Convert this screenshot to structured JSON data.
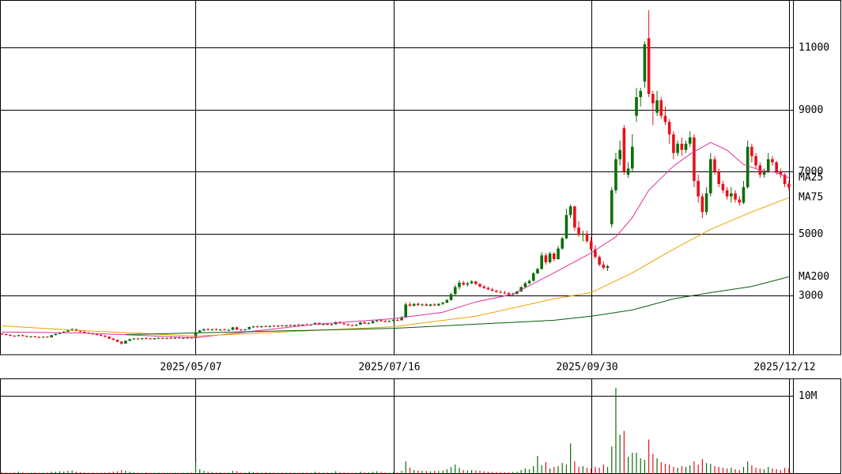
{
  "chart_data": {
    "type": "candlestick",
    "up_color": "#0a6e0a",
    "down_color": "#e8101a",
    "xlim": [
      -0.5,
      192
    ],
    "xticks": [
      {
        "value": 47,
        "label": "2025/05/07"
      },
      {
        "value": 95,
        "label": "2025/07/16"
      },
      {
        "value": 143,
        "label": "2025/09/30"
      },
      {
        "value": 191,
        "label": "2025/12/12"
      }
    ],
    "ylim": [
      1100,
      12530
    ],
    "yticks": [
      3000,
      5000,
      7000,
      9000,
      11000
    ],
    "grid": true,
    "ohlc": [
      [
        1780,
        1800,
        1740,
        1760
      ],
      [
        1760,
        1780,
        1720,
        1740
      ],
      [
        1740,
        1760,
        1700,
        1710
      ],
      [
        1710,
        1730,
        1680,
        1700
      ],
      [
        1700,
        1740,
        1690,
        1730
      ],
      [
        1730,
        1750,
        1690,
        1700
      ],
      [
        1700,
        1720,
        1660,
        1680
      ],
      [
        1680,
        1700,
        1650,
        1690
      ],
      [
        1690,
        1710,
        1660,
        1670
      ],
      [
        1670,
        1690,
        1640,
        1660
      ],
      [
        1660,
        1690,
        1650,
        1680
      ],
      [
        1680,
        1700,
        1650,
        1660
      ],
      [
        1660,
        1740,
        1650,
        1730
      ],
      [
        1730,
        1780,
        1720,
        1770
      ],
      [
        1770,
        1820,
        1760,
        1810
      ],
      [
        1810,
        1860,
        1790,
        1840
      ],
      [
        1840,
        1900,
        1830,
        1880
      ],
      [
        1880,
        1960,
        1860,
        1920
      ],
      [
        1920,
        1940,
        1850,
        1870
      ],
      [
        1870,
        1890,
        1820,
        1840
      ],
      [
        1840,
        1860,
        1790,
        1810
      ],
      [
        1810,
        1830,
        1770,
        1790
      ],
      [
        1790,
        1800,
        1740,
        1760
      ],
      [
        1760,
        1780,
        1720,
        1740
      ],
      [
        1740,
        1760,
        1690,
        1710
      ],
      [
        1710,
        1730,
        1660,
        1680
      ],
      [
        1680,
        1700,
        1600,
        1620
      ],
      [
        1620,
        1640,
        1560,
        1580
      ],
      [
        1580,
        1600,
        1500,
        1520
      ],
      [
        1520,
        1540,
        1420,
        1460
      ],
      [
        1460,
        1560,
        1450,
        1550
      ],
      [
        1550,
        1620,
        1530,
        1600
      ],
      [
        1600,
        1640,
        1580,
        1620
      ],
      [
        1620,
        1650,
        1590,
        1610
      ],
      [
        1610,
        1640,
        1580,
        1630
      ],
      [
        1630,
        1660,
        1600,
        1620
      ],
      [
        1620,
        1650,
        1590,
        1600
      ],
      [
        1600,
        1640,
        1580,
        1630
      ],
      [
        1630,
        1660,
        1610,
        1640
      ],
      [
        1640,
        1660,
        1600,
        1620
      ],
      [
        1620,
        1650,
        1600,
        1640
      ],
      [
        1640,
        1670,
        1620,
        1630
      ],
      [
        1630,
        1660,
        1600,
        1650
      ],
      [
        1650,
        1670,
        1620,
        1630
      ],
      [
        1630,
        1660,
        1610,
        1640
      ],
      [
        1640,
        1680,
        1620,
        1650
      ],
      [
        1650,
        1680,
        1620,
        1640
      ],
      [
        1640,
        1850,
        1630,
        1820
      ],
      [
        1820,
        1900,
        1800,
        1880
      ],
      [
        1880,
        1950,
        1860,
        1920
      ],
      [
        1920,
        1960,
        1880,
        1900
      ],
      [
        1900,
        1940,
        1870,
        1920
      ],
      [
        1920,
        1950,
        1880,
        1900
      ],
      [
        1900,
        1930,
        1870,
        1910
      ],
      [
        1910,
        1940,
        1880,
        1890
      ],
      [
        1890,
        1920,
        1860,
        1900
      ],
      [
        1900,
        2000,
        1890,
        1980
      ],
      [
        1980,
        2010,
        1890,
        1910
      ],
      [
        1910,
        1930,
        1870,
        1890
      ],
      [
        1890,
        1930,
        1880,
        1920
      ],
      [
        1920,
        2010,
        1910,
        1990
      ],
      [
        1990,
        2030,
        1960,
        2010
      ],
      [
        2010,
        2040,
        1970,
        1990
      ],
      [
        1990,
        2030,
        1970,
        2020
      ],
      [
        2020,
        2050,
        1990,
        2000
      ],
      [
        2000,
        2040,
        1980,
        2030
      ],
      [
        2030,
        2060,
        2000,
        2010
      ],
      [
        2010,
        2050,
        1990,
        2040
      ],
      [
        2040,
        2070,
        2010,
        2020
      ],
      [
        2020,
        2060,
        2000,
        2050
      ],
      [
        2050,
        2080,
        2020,
        2030
      ],
      [
        2030,
        2070,
        2010,
        2060
      ],
      [
        2060,
        2100,
        2030,
        2040
      ],
      [
        2040,
        2080,
        2020,
        2070
      ],
      [
        2070,
        2110,
        2040,
        2050
      ],
      [
        2050,
        2090,
        2030,
        2080
      ],
      [
        2080,
        2150,
        2060,
        2120
      ],
      [
        2120,
        2140,
        2060,
        2070
      ],
      [
        2070,
        2100,
        2040,
        2090
      ],
      [
        2090,
        2120,
        2050,
        2060
      ],
      [
        2060,
        2100,
        2040,
        2080
      ],
      [
        2080,
        2170,
        2070,
        2150
      ],
      [
        2150,
        2180,
        2100,
        2110
      ],
      [
        2110,
        2130,
        2060,
        2080
      ],
      [
        2080,
        2100,
        2030,
        2050
      ],
      [
        2050,
        2080,
        2020,
        2040
      ],
      [
        2040,
        2080,
        2020,
        2070
      ],
      [
        2070,
        2160,
        2060,
        2140
      ],
      [
        2140,
        2170,
        2090,
        2100
      ],
      [
        2100,
        2140,
        2080,
        2120
      ],
      [
        2120,
        2200,
        2100,
        2180
      ],
      [
        2180,
        2230,
        2150,
        2210
      ],
      [
        2210,
        2240,
        2160,
        2180
      ],
      [
        2180,
        2220,
        2150,
        2170
      ],
      [
        2170,
        2200,
        2140,
        2190
      ],
      [
        2190,
        2240,
        2170,
        2220
      ],
      [
        2220,
        2260,
        2190,
        2210
      ],
      [
        2210,
        2350,
        2200,
        2300
      ],
      [
        2300,
        2780,
        2290,
        2720
      ],
      [
        2720,
        2800,
        2650,
        2680
      ],
      [
        2680,
        2760,
        2650,
        2740
      ],
      [
        2740,
        2780,
        2670,
        2700
      ],
      [
        2700,
        2750,
        2660,
        2720
      ],
      [
        2720,
        2760,
        2660,
        2680
      ],
      [
        2680,
        2740,
        2650,
        2720
      ],
      [
        2720,
        2760,
        2670,
        2690
      ],
      [
        2690,
        2760,
        2660,
        2740
      ],
      [
        2740,
        2800,
        2700,
        2780
      ],
      [
        2780,
        2900,
        2760,
        2860
      ],
      [
        2860,
        3100,
        2840,
        3050
      ],
      [
        3050,
        3350,
        3020,
        3280
      ],
      [
        3280,
        3500,
        3200,
        3420
      ],
      [
        3420,
        3480,
        3320,
        3360
      ],
      [
        3360,
        3440,
        3300,
        3400
      ],
      [
        3400,
        3500,
        3380,
        3460
      ],
      [
        3460,
        3480,
        3340,
        3380
      ],
      [
        3380,
        3400,
        3260,
        3300
      ],
      [
        3300,
        3340,
        3220,
        3250
      ],
      [
        3250,
        3300,
        3180,
        3200
      ],
      [
        3200,
        3260,
        3140,
        3160
      ],
      [
        3160,
        3200,
        3100,
        3120
      ],
      [
        3120,
        3180,
        3080,
        3100
      ],
      [
        3100,
        3160,
        3050,
        3080
      ],
      [
        3080,
        3120,
        3020,
        3040
      ],
      [
        3040,
        3100,
        3000,
        3060
      ],
      [
        3060,
        3160,
        3040,
        3140
      ],
      [
        3140,
        3300,
        3120,
        3280
      ],
      [
        3280,
        3450,
        3250,
        3400
      ],
      [
        3400,
        3520,
        3380,
        3480
      ],
      [
        3480,
        3760,
        3460,
        3720
      ],
      [
        3720,
        3900,
        3700,
        3860
      ],
      [
        3860,
        4400,
        3850,
        4300
      ],
      [
        4300,
        4380,
        4000,
        4080
      ],
      [
        4080,
        4420,
        4040,
        4360
      ],
      [
        4360,
        4400,
        4100,
        4180
      ],
      [
        4180,
        4600,
        4160,
        4520
      ],
      [
        4520,
        4900,
        4480,
        4850
      ],
      [
        4850,
        5800,
        4820,
        5600
      ],
      [
        5600,
        5950,
        5500,
        5880
      ],
      [
        5880,
        5900,
        5100,
        5200
      ],
      [
        5200,
        5400,
        4900,
        4960
      ],
      [
        4960,
        5100,
        4750,
        5000
      ],
      [
        5000,
        5100,
        4700,
        4760
      ],
      [
        4760,
        4900,
        4450,
        4500
      ],
      [
        4500,
        4620,
        4200,
        4250
      ],
      [
        4250,
        4300,
        3950,
        4000
      ],
      [
        4000,
        4100,
        3850,
        3900
      ],
      [
        3900,
        4000,
        3800,
        3950
      ],
      [
        5300,
        6500,
        5200,
        6400
      ],
      [
        6400,
        7600,
        6300,
        7400
      ],
      [
        7400,
        8000,
        7200,
        7700
      ],
      [
        8400,
        8500,
        6900,
        7000
      ],
      [
        6900,
        7300,
        6800,
        7100
      ],
      [
        7100,
        8200,
        7000,
        7800
      ],
      [
        8800,
        9700,
        8600,
        9400
      ],
      [
        9400,
        9700,
        9100,
        9600
      ],
      [
        9900,
        11200,
        9700,
        11100
      ],
      [
        11300,
        12200,
        9400,
        9500
      ],
      [
        9500,
        9600,
        8500,
        9200
      ],
      [
        8900,
        9600,
        8800,
        9300
      ],
      [
        9300,
        9400,
        8700,
        8800
      ],
      [
        8800,
        9100,
        8500,
        8600
      ],
      [
        8600,
        8700,
        7900,
        8200
      ],
      [
        8200,
        8300,
        7400,
        7600
      ],
      [
        7600,
        8000,
        7500,
        7900
      ],
      [
        7900,
        8100,
        7500,
        7700
      ],
      [
        7700,
        8000,
        7600,
        7900
      ],
      [
        7900,
        8300,
        7800,
        8100
      ],
      [
        8100,
        8200,
        6500,
        6700
      ],
      [
        6700,
        6900,
        6000,
        6200
      ],
      [
        6200,
        6300,
        5500,
        5700
      ],
      [
        5700,
        6500,
        5600,
        6300
      ],
      [
        6300,
        7600,
        6200,
        7400
      ],
      [
        7400,
        7500,
        6900,
        7000
      ],
      [
        7000,
        7100,
        6500,
        6600
      ],
      [
        6600,
        6700,
        6300,
        6400
      ],
      [
        6400,
        6500,
        6100,
        6200
      ],
      [
        6200,
        6500,
        6000,
        6300
      ],
      [
        6300,
        6400,
        6000,
        6100
      ],
      [
        6100,
        6200,
        5900,
        6000
      ],
      [
        6000,
        6700,
        5950,
        6500
      ],
      [
        6500,
        8000,
        6450,
        7800
      ],
      [
        7800,
        7900,
        7300,
        7500
      ],
      [
        7500,
        7600,
        7100,
        7200
      ],
      [
        7200,
        7300,
        6800,
        6900
      ],
      [
        6900,
        7100,
        6800,
        7000
      ],
      [
        7000,
        7600,
        6950,
        7400
      ],
      [
        7400,
        7500,
        7200,
        7300
      ],
      [
        7300,
        7350,
        6900,
        7000
      ],
      [
        7000,
        7100,
        6800,
        6900
      ],
      [
        6900,
        6950,
        6500,
        6600
      ],
      [
        6600,
        6700,
        6400,
        6500
      ]
    ],
    "series": [
      {
        "name": "MA25",
        "color": "#e0309a",
        "x": [
          0,
          19,
          47,
          76,
          95,
          107,
          115,
          124,
          134,
          143,
          149,
          153,
          157,
          163,
          167,
          172,
          176,
          180,
          184,
          188,
          191
        ],
        "values": [
          1830,
          1800,
          1650,
          2080,
          2260,
          2470,
          2800,
          3050,
          3740,
          4380,
          4900,
          5520,
          6400,
          7180,
          7560,
          7940,
          7690,
          7230,
          7050,
          6970,
          6800
        ]
      },
      {
        "name": "MA75",
        "color": "#f0a000",
        "x": [
          0,
          19,
          47,
          95,
          115,
          134,
          143,
          153,
          163,
          172,
          182,
          191
        ],
        "values": [
          2030,
          1880,
          1700,
          2000,
          2340,
          2900,
          3100,
          3740,
          4500,
          5140,
          5700,
          6160
        ]
      },
      {
        "name": "MA200",
        "color": "#0a5a0a",
        "x": [
          30,
          95,
          134,
          143,
          153,
          163,
          172,
          182,
          191
        ],
        "values": [
          1750,
          1950,
          2210,
          2340,
          2540,
          2900,
          3100,
          3300,
          3610
        ]
      }
    ],
    "volume": [
      250000,
      200000,
      180000,
      220000,
      300000,
      200000,
      150000,
      180000,
      200000,
      160000,
      180000,
      200000,
      300000,
      280000,
      350000,
      320000,
      400000,
      450000,
      300000,
      250000,
      200000,
      180000,
      200000,
      150000,
      180000,
      200000,
      250000,
      300000,
      350000,
      500000,
      400000,
      300000,
      200000,
      180000,
      150000,
      200000,
      170000,
      160000,
      180000,
      150000,
      160000,
      150000,
      170000,
      140000,
      160000,
      180000,
      200000,
      1500000,
      600000,
      400000,
      300000,
      250000,
      200000,
      220000,
      180000,
      200000,
      400000,
      350000,
      200000,
      180000,
      300000,
      250000,
      200000,
      180000,
      220000,
      200000,
      180000,
      160000,
      200000,
      180000,
      170000,
      190000,
      160000,
      200000,
      180000,
      170000,
      300000,
      220000,
      180000,
      200000,
      170000,
      350000,
      250000,
      200000,
      180000,
      160000,
      170000,
      300000,
      220000,
      200000,
      300000,
      350000,
      250000,
      200000,
      180000,
      220000,
      200000,
      400000,
      1600000,
      800000,
      500000,
      450000,
      400000,
      380000,
      350000,
      400000,
      380000,
      450000,
      600000,
      900000,
      1200000,
      800000,
      500000,
      450000,
      500000,
      450000,
      400000,
      350000,
      300000,
      280000,
      260000,
      250000,
      240000,
      220000,
      250000,
      300000,
      500000,
      700000,
      600000,
      1000000,
      2300000,
      1100000,
      1500000,
      700000,
      900000,
      1000000,
      1400000,
      1200000,
      3900000,
      1600000,
      900000,
      1000000,
      800000,
      700000,
      900000,
      800000,
      1200000,
      900000,
      3500000,
      11000000,
      5000000,
      5500000,
      2200000,
      2700000,
      2700000,
      2000000,
      1800000,
      4400000,
      2600000,
      2000000,
      1500000,
      1300000,
      1200000,
      900000,
      800000,
      1000000,
      900000,
      1100000,
      1600000,
      1200000,
      1900000,
      1400000,
      1300000,
      1000000,
      900000,
      800000,
      700000,
      800000,
      600000,
      500000,
      900000,
      1600000,
      1100000,
      800000,
      700000,
      600000,
      900000,
      700000,
      600000,
      500000,
      800000,
      700000
    ],
    "vlim": [
      0,
      12200000
    ],
    "vticks": [
      {
        "value": 10000000,
        "label": "10M"
      }
    ]
  }
}
